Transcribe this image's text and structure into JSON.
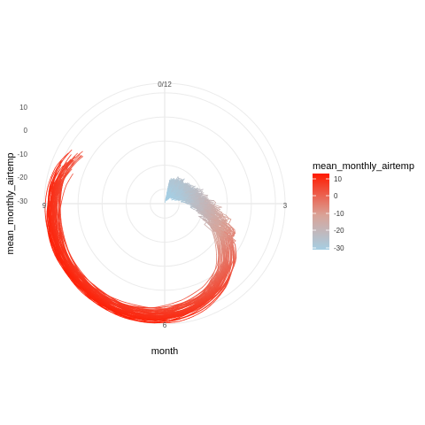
{
  "chart_data": {
    "type": "line",
    "coord": "polar",
    "x_field": "month",
    "y_field": "mean_monthly_airtemp",
    "xlabel": "month",
    "ylabel": "mean_monthly_airtemp",
    "x_ticks": [
      "0/12",
      "3",
      "6",
      "9"
    ],
    "x_range": [
      0,
      12
    ],
    "y_ticks": [
      "10",
      "0",
      "-10",
      "-20",
      "-30"
    ],
    "y_range": [
      -36,
      14
    ],
    "grid": true,
    "color_scale": {
      "title": "mean_monthly_airtemp",
      "low_color": "#a6cee3",
      "mid_color": "#d9a398",
      "high_color": "#ff1a00",
      "range": [
        -31,
        15
      ],
      "ticks": [
        "10",
        "0",
        "-10",
        "-20",
        "-30"
      ]
    },
    "legend_position": "right",
    "series_count": 60,
    "typical_year": {
      "month": [
        0.5,
        1,
        1.5,
        2,
        2.5,
        3,
        3.5,
        4,
        4.5,
        5,
        5.5,
        6,
        6.5,
        7,
        7.5,
        8,
        8.5,
        9,
        9.5,
        10,
        10.5,
        11,
        11.5,
        12
      ],
      "mean_monthly_airtemp": [
        -30,
        -29,
        -28,
        -27,
        -25,
        -22,
        -16,
        -8,
        0,
        5,
        8,
        10,
        11,
        11.5,
        11.5,
        11.5,
        11,
        10,
        9,
        6,
        2,
        -5,
        -12,
        -20
      ]
    }
  }
}
